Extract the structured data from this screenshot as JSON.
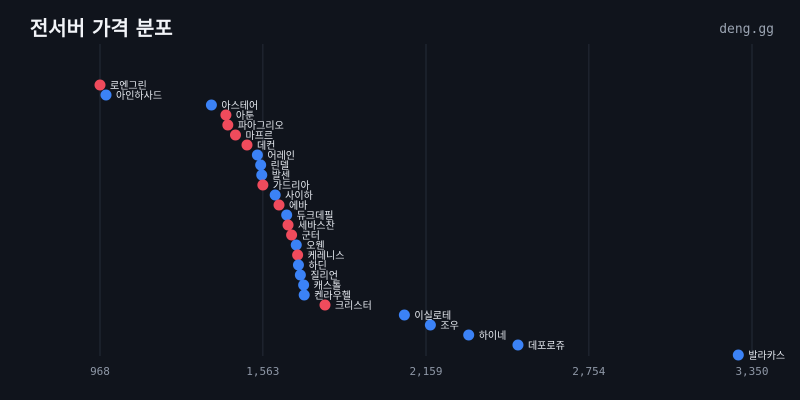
{
  "header": {
    "title": "전서버 가격 분포",
    "brand": "deng.gg"
  },
  "colors": {
    "red": "#ef4b5c",
    "blue": "#3b82f6"
  },
  "chart_data": {
    "type": "scatter",
    "title": "전서버 가격 분포",
    "xticks": [
      968,
      1563,
      2159,
      2754,
      3350
    ],
    "xlim": [
      968,
      3350
    ],
    "grid": true,
    "points": [
      {
        "name": "로엔그린",
        "x": 968,
        "color": "red"
      },
      {
        "name": "아인하사드",
        "x": 990,
        "color": "blue"
      },
      {
        "name": "아스테어",
        "x": 1375,
        "color": "blue"
      },
      {
        "name": "아툰",
        "x": 1428,
        "color": "red"
      },
      {
        "name": "파아그리오",
        "x": 1435,
        "color": "red"
      },
      {
        "name": "마프르",
        "x": 1463,
        "color": "red"
      },
      {
        "name": "데컨",
        "x": 1505,
        "color": "red"
      },
      {
        "name": "어레인",
        "x": 1543,
        "color": "blue"
      },
      {
        "name": "린델",
        "x": 1555,
        "color": "blue"
      },
      {
        "name": "발센",
        "x": 1559,
        "color": "blue"
      },
      {
        "name": "가드리아",
        "x": 1563,
        "color": "red"
      },
      {
        "name": "사이하",
        "x": 1608,
        "color": "blue"
      },
      {
        "name": "에바",
        "x": 1622,
        "color": "red"
      },
      {
        "name": "듀크데필",
        "x": 1650,
        "color": "blue"
      },
      {
        "name": "세바스찬",
        "x": 1655,
        "color": "red"
      },
      {
        "name": "군터",
        "x": 1668,
        "color": "red"
      },
      {
        "name": "오웬",
        "x": 1685,
        "color": "blue"
      },
      {
        "name": "케레니스",
        "x": 1690,
        "color": "red"
      },
      {
        "name": "하딘",
        "x": 1693,
        "color": "blue"
      },
      {
        "name": "질리언",
        "x": 1700,
        "color": "blue"
      },
      {
        "name": "캐스톨",
        "x": 1712,
        "color": "blue"
      },
      {
        "name": "켄라우헬",
        "x": 1714,
        "color": "blue"
      },
      {
        "name": "크리스터",
        "x": 1790,
        "color": "red"
      },
      {
        "name": "이실로테",
        "x": 2080,
        "color": "blue"
      },
      {
        "name": "조우",
        "x": 2175,
        "color": "blue"
      },
      {
        "name": "하이네",
        "x": 2315,
        "color": "blue"
      },
      {
        "name": "데포로쥬",
        "x": 2495,
        "color": "blue"
      },
      {
        "name": "발라카스",
        "x": 3300,
        "color": "blue"
      }
    ]
  }
}
